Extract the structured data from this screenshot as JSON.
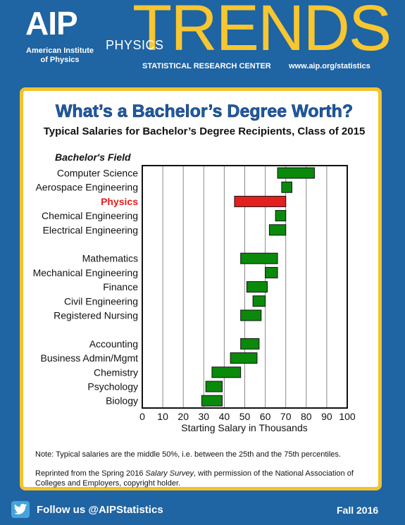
{
  "header": {
    "logo": "AIP",
    "org_line1": "American Institute",
    "org_line2": "of Physics",
    "physics": "PHYSICS",
    "trends": "TRENDS",
    "center": "STATISTICAL RESEARCH CENTER",
    "url": "www.aip.org/statistics"
  },
  "card": {
    "note": "Note: Typical salaries are the middle 50%, i.e. between the 25th and the 75th percentiles.",
    "reprint_pre": "Reprinted from the Spring 2016 ",
    "reprint_em": "Salary Survey",
    "reprint_post": ", with permission of the National Association of",
    "reprint_line2": "Colleges and Employers, copyright holder."
  },
  "footer": {
    "follow": "Follow us @AIPStatistics",
    "season": "Fall 2016",
    "twitter_icon": "twitter-bird-icon"
  },
  "colors": {
    "background": "#1f64a3",
    "accent": "#f3c22c",
    "title_blue": "#1d5da8",
    "bar_green": "#0a8a0a",
    "highlight_red": "#e41f1f"
  },
  "chart_data": {
    "type": "bar",
    "orientation": "horizontal floating range",
    "title": "What’s a Bachelor’s Degree Worth?",
    "subtitle": "Typical Salaries for Bachelor’s Degree Recipients, Class of 2015",
    "ylabel": "Bachelor's Field",
    "xlabel": "Starting Salary in Thousands",
    "xlim": [
      0,
      100
    ],
    "xticks": [
      0,
      10,
      20,
      30,
      40,
      50,
      60,
      70,
      80,
      90,
      100
    ],
    "grid": "vertical",
    "groups": [
      [
        {
          "label": "Computer Science",
          "low": 66,
          "high": 84
        },
        {
          "label": "Aerospace Engineering",
          "low": 68,
          "high": 73
        },
        {
          "label": "Physics",
          "low": 45,
          "high": 70,
          "highlight": true
        },
        {
          "label": "Chemical Engineering",
          "low": 65,
          "high": 70
        },
        {
          "label": "Electrical Engineering",
          "low": 62,
          "high": 70
        }
      ],
      [
        {
          "label": "Mathematics",
          "low": 48,
          "high": 66
        },
        {
          "label": "Mechanical Engineering",
          "low": 60,
          "high": 66
        },
        {
          "label": "Finance",
          "low": 51,
          "high": 61
        },
        {
          "label": "Civil Engineering",
          "low": 54,
          "high": 60
        },
        {
          "label": "Registered Nursing",
          "low": 48,
          "high": 58
        }
      ],
      [
        {
          "label": "Accounting",
          "low": 48,
          "high": 57
        },
        {
          "label": "Business Admin/Mgmt",
          "low": 43,
          "high": 56
        },
        {
          "label": "Chemistry",
          "low": 34,
          "high": 48
        },
        {
          "label": "Psychology",
          "low": 31,
          "high": 39
        },
        {
          "label": "Biology",
          "low": 29,
          "high": 39
        }
      ]
    ]
  }
}
